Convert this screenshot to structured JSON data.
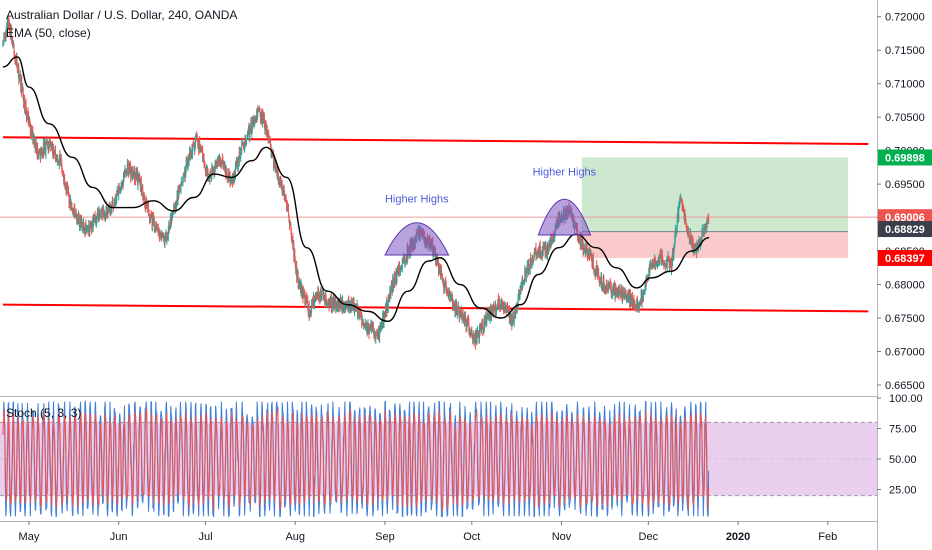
{
  "header": {
    "title": "Australian Dollar / U.S. Dollar, 240, OANDA",
    "indicator": "EMA (50, close)",
    "oscillator": "Stoch (5, 3, 3)"
  },
  "colors": {
    "up": "#26a69a",
    "down": "#ef5350",
    "ema": "#000000",
    "sr_line": "#ff0000",
    "target_zone": "#a5d6a7",
    "stop_zone": "#f8b4b4",
    "annotation": "#4a5ad8",
    "stoch_k": "#3f7fd6",
    "stoch_d": "#ef5350",
    "stoch_band": "#e1bee7"
  },
  "chart_data": {
    "type": "candlestick",
    "symbol": "AUDUSD",
    "timeframe": "240",
    "source": "OANDA",
    "x_labels": [
      "May",
      "Jun",
      "Jul",
      "Aug",
      "Sep",
      "Oct",
      "Nov",
      "Dec",
      "2020",
      "Feb"
    ],
    "y_ticks": [
      "0.72000",
      "0.71500",
      "0.71000",
      "0.70500",
      "0.70000",
      "0.69500",
      "0.69000",
      "0.68500",
      "0.68000",
      "0.67500",
      "0.67000",
      "0.66500"
    ],
    "ylim": [
      0.6635,
      0.7225
    ],
    "price_path": [
      [
        "2019-04-22",
        0.716
      ],
      [
        "2019-04-24",
        0.719
      ],
      [
        "2019-04-27",
        0.7125
      ],
      [
        "2019-05-01",
        0.704
      ],
      [
        "2019-05-04",
        0.6995
      ],
      [
        "2019-05-08",
        0.701
      ],
      [
        "2019-05-12",
        0.698
      ],
      [
        "2019-05-16",
        0.691
      ],
      [
        "2019-05-21",
        0.688
      ],
      [
        "2019-05-25",
        0.6905
      ],
      [
        "2019-05-30",
        0.6915
      ],
      [
        "2019-06-04",
        0.6975
      ],
      [
        "2019-06-08",
        0.6955
      ],
      [
        "2019-06-12",
        0.69
      ],
      [
        "2019-06-17",
        0.6865
      ],
      [
        "2019-06-21",
        0.6925
      ],
      [
        "2019-06-25",
        0.6985
      ],
      [
        "2019-06-28",
        0.702
      ],
      [
        "2019-07-02",
        0.696
      ],
      [
        "2019-07-06",
        0.6985
      ],
      [
        "2019-07-10",
        0.6955
      ],
      [
        "2019-07-14",
        0.701
      ],
      [
        "2019-07-19",
        0.7055
      ],
      [
        "2019-07-21",
        0.7048
      ],
      [
        "2019-07-25",
        0.6975
      ],
      [
        "2019-07-29",
        0.6925
      ],
      [
        "2019-08-02",
        0.6805
      ],
      [
        "2019-08-06",
        0.676
      ],
      [
        "2019-08-09",
        0.679
      ],
      [
        "2019-08-13",
        0.677
      ],
      [
        "2019-08-18",
        0.6772
      ],
      [
        "2019-08-22",
        0.6765
      ],
      [
        "2019-08-26",
        0.6735
      ],
      [
        "2019-08-30",
        0.6725
      ],
      [
        "2019-09-04",
        0.6805
      ],
      [
        "2019-09-09",
        0.685
      ],
      [
        "2019-09-13",
        0.6875
      ],
      [
        "2019-09-17",
        0.686
      ],
      [
        "2019-09-21",
        0.6805
      ],
      [
        "2019-09-25",
        0.6765
      ],
      [
        "2019-09-29",
        0.6745
      ],
      [
        "2019-10-02",
        0.6715
      ],
      [
        "2019-10-07",
        0.6755
      ],
      [
        "2019-10-11",
        0.6775
      ],
      [
        "2019-10-15",
        0.6745
      ],
      [
        "2019-10-19",
        0.681
      ],
      [
        "2019-10-23",
        0.685
      ],
      [
        "2019-10-27",
        0.685
      ],
      [
        "2019-10-31",
        0.6895
      ],
      [
        "2019-11-04",
        0.691
      ],
      [
        "2019-11-07",
        0.687
      ],
      [
        "2019-11-11",
        0.684
      ],
      [
        "2019-11-15",
        0.68
      ],
      [
        "2019-11-20",
        0.679
      ],
      [
        "2019-11-24",
        0.678
      ],
      [
        "2019-11-28",
        0.677
      ],
      [
        "2019-12-02",
        0.683
      ],
      [
        "2019-12-05",
        0.684
      ],
      [
        "2019-12-09",
        0.683
      ],
      [
        "2019-12-12",
        0.693
      ],
      [
        "2019-12-14",
        0.689
      ],
      [
        "2019-12-17",
        0.685
      ],
      [
        "2019-12-20",
        0.688
      ],
      [
        "2019-12-22",
        0.6901
      ]
    ],
    "ema": {
      "name": "EMA (50, close)",
      "points": [
        [
          "2019-04-22",
          0.7125
        ],
        [
          "2019-04-27",
          0.714
        ],
        [
          "2019-05-01",
          0.7095
        ],
        [
          "2019-05-08",
          0.704
        ],
        [
          "2019-05-16",
          0.699
        ],
        [
          "2019-05-23",
          0.6945
        ],
        [
          "2019-05-30",
          0.6915
        ],
        [
          "2019-06-06",
          0.6915
        ],
        [
          "2019-06-13",
          0.6925
        ],
        [
          "2019-06-20",
          0.691
        ],
        [
          "2019-06-27",
          0.693
        ],
        [
          "2019-07-04",
          0.6965
        ],
        [
          "2019-07-10",
          0.696
        ],
        [
          "2019-07-17",
          0.6985
        ],
        [
          "2019-07-22",
          0.7005
        ],
        [
          "2019-07-29",
          0.696
        ],
        [
          "2019-08-05",
          0.6855
        ],
        [
          "2019-08-12",
          0.679
        ],
        [
          "2019-08-19",
          0.677
        ],
        [
          "2019-08-26",
          0.676
        ],
        [
          "2019-09-02",
          0.6745
        ],
        [
          "2019-09-09",
          0.679
        ],
        [
          "2019-09-16",
          0.6835
        ],
        [
          "2019-09-20",
          0.684
        ],
        [
          "2019-09-27",
          0.68
        ],
        [
          "2019-10-04",
          0.6765
        ],
        [
          "2019-10-11",
          0.675
        ],
        [
          "2019-10-18",
          0.677
        ],
        [
          "2019-10-24",
          0.6815
        ],
        [
          "2019-10-31",
          0.6855
        ],
        [
          "2019-11-06",
          0.6875
        ],
        [
          "2019-11-13",
          0.6855
        ],
        [
          "2019-11-20",
          0.6825
        ],
        [
          "2019-11-27",
          0.6795
        ],
        [
          "2019-12-02",
          0.681
        ],
        [
          "2019-12-09",
          0.682
        ],
        [
          "2019-12-16",
          0.685
        ],
        [
          "2019-12-22",
          0.687
        ]
      ]
    },
    "resistance_line": {
      "from": [
        "2019-04-22",
        0.702
      ],
      "to": [
        "2020-02-15",
        0.701
      ]
    },
    "support_line": {
      "from": [
        "2019-04-22",
        0.677
      ],
      "to": [
        "2020-02-15",
        0.676
      ]
    },
    "position": {
      "start": "2019-11-08",
      "end": "2020-02-08",
      "entry": 0.6879,
      "target": 0.69898,
      "stop": 0.68397
    },
    "annotations": [
      {
        "text": "Higher Highs",
        "from": "2019-09-01",
        "to": "2019-09-23",
        "peak": 0.6875,
        "base": 0.685
      },
      {
        "text": "Higher Highs",
        "from": "2019-10-24",
        "to": "2019-11-11",
        "peak": 0.6915,
        "base": 0.688
      }
    ],
    "price_labels": [
      {
        "text": "0.69898",
        "value": 0.69898,
        "color": "#00b050"
      },
      {
        "text": "0.69006",
        "value": 0.69006,
        "color": "#ef5350"
      },
      {
        "text": "0.68829",
        "value": 0.68829,
        "color": "#3a3f4b"
      },
      {
        "text": "0.68397",
        "value": 0.68397,
        "color": "#ff0000"
      }
    ],
    "last_price": 0.69006,
    "stochastic": {
      "name": "Stoch (5, 3, 3)",
      "y_ticks": [
        "100.00",
        "75.00",
        "50.00",
        "25.00"
      ],
      "ylim": [
        0,
        100
      ],
      "band": [
        20,
        80
      ]
    },
    "x_range": [
      "2019-04-21",
      "2020-02-18"
    ]
  }
}
